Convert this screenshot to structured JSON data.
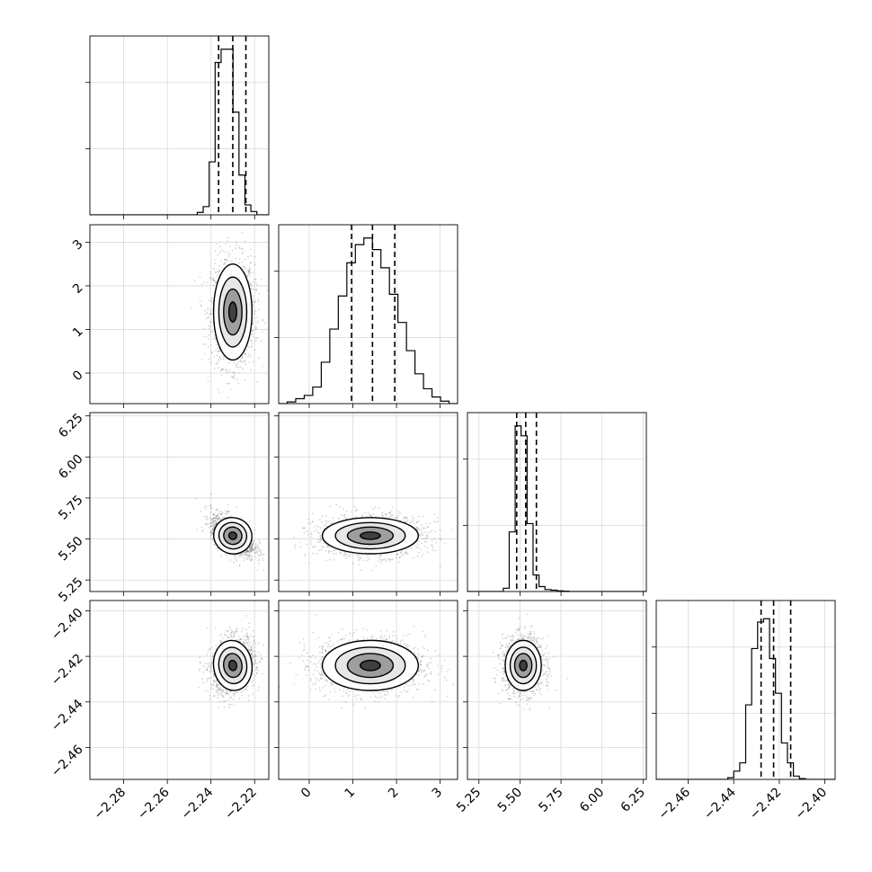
{
  "chart_data": {
    "type": "scatter",
    "kind": "corner-plot",
    "grid": true,
    "quantile_lines": "dashed",
    "parameters": [
      {
        "ticks": [
          -2.28,
          -2.26,
          -2.24,
          -2.22
        ],
        "tick_labels": [
          "−2.28",
          "−2.26",
          "−2.24",
          "−2.22"
        ],
        "range": [
          -2.2955,
          -2.2135
        ],
        "hist": [
          0,
          0,
          0,
          0,
          0,
          0,
          0,
          0,
          0,
          0,
          0,
          0,
          0,
          0,
          0,
          0,
          0,
          0,
          0.015,
          0.05,
          0.32,
          0.92,
          1.0,
          1.0,
          0.62,
          0.24,
          0.06,
          0.02,
          0,
          0
        ],
        "quantiles": [
          -2.2365,
          -2.23,
          -2.224
        ],
        "peak": [
          -2.23,
          1.4,
          5.52,
          -2.424
        ],
        "spread": [
          0.004,
          0.5,
          0.05,
          0.005
        ],
        "diag_max": 1.08
      },
      {
        "ticks": [
          0,
          1,
          2,
          3
        ],
        "tick_labels": [
          "0",
          "1",
          "2",
          "3"
        ],
        "range": [
          -0.7,
          3.4
        ],
        "hist": [
          0,
          0.01,
          0.03,
          0.05,
          0.1,
          0.25,
          0.45,
          0.65,
          0.85,
          0.96,
          1.0,
          0.93,
          0.82,
          0.66,
          0.49,
          0.32,
          0.18,
          0.09,
          0.04,
          0.015,
          0
        ],
        "quantiles": [
          0.97,
          1.45,
          1.96
        ]
      },
      {
        "ticks": [
          5.25,
          5.5,
          5.75,
          6.0,
          6.25
        ],
        "tick_labels": [
          "5.25",
          "5.50",
          "5.75",
          "6.00",
          "6.25"
        ],
        "range": [
          5.18,
          6.27
        ],
        "hist": [
          0,
          0,
          0,
          0,
          0,
          0,
          0.02,
          0.36,
          1.0,
          0.94,
          0.41,
          0.1,
          0.03,
          0.012,
          0.008,
          0.004,
          0.002,
          0,
          0,
          0,
          0,
          0,
          0,
          0,
          0,
          0,
          0,
          0,
          0,
          0
        ],
        "quantiles": [
          5.48,
          5.535,
          5.6
        ]
      },
      {
        "ticks": [
          -2.46,
          -2.44,
          -2.42,
          -2.4
        ],
        "tick_labels": [
          "−2.46",
          "−2.44",
          "−2.42",
          "−2.40"
        ],
        "range": [
          -2.474,
          -2.3955
        ],
        "hist": [
          0,
          0,
          0,
          0,
          0,
          0,
          0,
          0,
          0,
          0,
          0,
          0,
          0.01,
          0.05,
          0.1,
          0.45,
          0.79,
          0.95,
          0.97,
          0.73,
          0.52,
          0.22,
          0.1,
          0.02,
          0.005,
          0,
          0,
          0,
          0,
          0
        ],
        "quantiles": [
          -2.428,
          -2.4225,
          -2.415
        ]
      }
    ]
  }
}
